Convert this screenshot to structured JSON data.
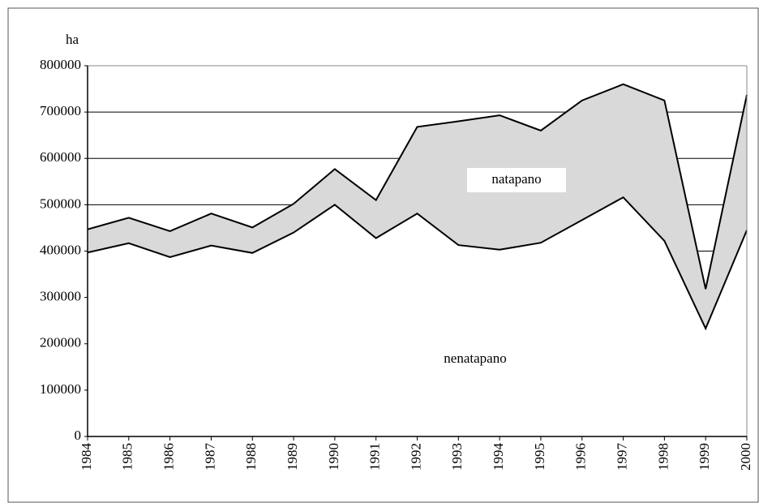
{
  "chart_data": {
    "type": "stacked_area",
    "ylabel": "ha",
    "categories": [
      "1984",
      "1985",
      "1986",
      "1987",
      "1988",
      "1989",
      "1990",
      "1991",
      "1992",
      "1993",
      "1994",
      "1995",
      "1996",
      "1997",
      "1998",
      "1999",
      "2000"
    ],
    "series": [
      {
        "name": "nenatapano",
        "color": "#ffffff",
        "values": [
          397000,
          417000,
          387000,
          412000,
          396000,
          440000,
          500000,
          428000,
          481000,
          413000,
          403000,
          418000,
          467000,
          516000,
          422000,
          233000,
          445000
        ]
      },
      {
        "name": "natapano",
        "color": "#d9d9d9",
        "values": [
          50000,
          55000,
          56000,
          69000,
          55000,
          62000,
          77000,
          82000,
          187000,
          267000,
          290000,
          242000,
          258000,
          244000,
          303000,
          85000,
          292000
        ]
      }
    ],
    "ylim": [
      0,
      800000
    ],
    "yticks": [
      0,
      100000,
      200000,
      300000,
      400000,
      500000,
      600000,
      700000,
      800000
    ],
    "grid": true
  }
}
